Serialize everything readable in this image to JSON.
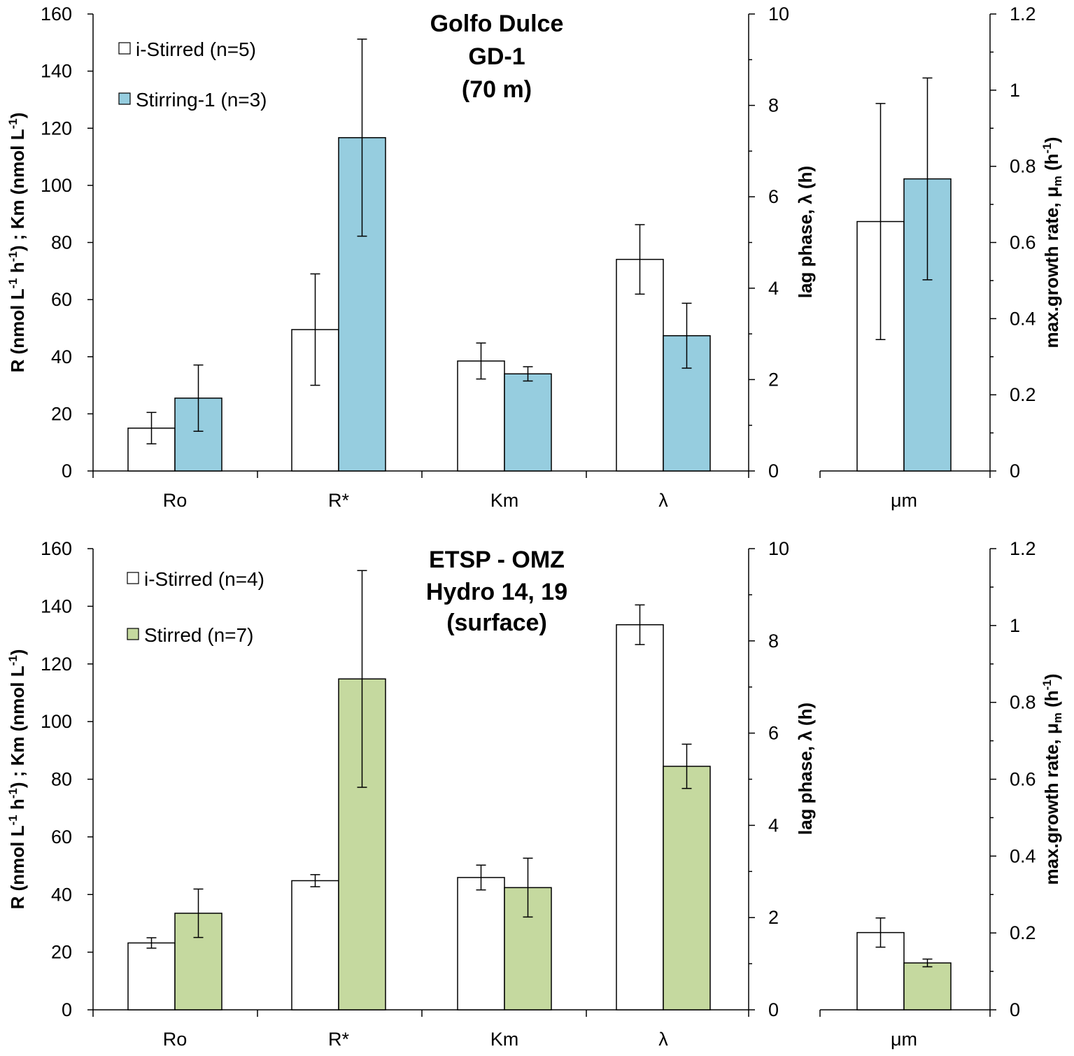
{
  "chart_data": [
    {
      "type": "bar",
      "title": [
        "Golfo Dulce",
        "GD-1",
        "(70 m)"
      ],
      "categories": [
        "Ro",
        "R*",
        "Km",
        "λ",
        "μm"
      ],
      "axes": {
        "left": {
          "label_parts": [
            "R (nmol L",
            "-1",
            " h",
            "-1",
            ") ; Km (nmol L",
            "-1",
            ")"
          ],
          "ylim": [
            0,
            160
          ],
          "ticks": [
            "0",
            "20",
            "40",
            "60",
            "80",
            "100",
            "120",
            "140",
            "160"
          ]
        },
        "lag": {
          "label": "lag phase, λ (h)",
          "ylim": [
            0,
            10
          ],
          "ticks": [
            "0",
            "2",
            "4",
            "6",
            "8",
            "10"
          ]
        },
        "mu": {
          "label_parts": [
            "max.growth rate, μ",
            "m",
            " (h",
            "-1",
            ")"
          ],
          "ylim": [
            0,
            1.2
          ],
          "ticks": [
            "0",
            "0.2",
            "0.4",
            "0.6",
            "0.8",
            "1",
            "1.2"
          ]
        }
      },
      "series": [
        {
          "name": "i-Stirred (n=5)",
          "color": "#ffffff",
          "values": [
            15,
            49.5,
            38.5,
            4.63,
            0.655
          ],
          "errors": [
            5.5,
            19.5,
            6.3,
            0.76,
            0.31
          ]
        },
        {
          "name": "Stirring-1 (n=3)",
          "color": "#96cddf",
          "values": [
            25.5,
            116.7,
            34,
            2.96,
            0.767
          ],
          "errors": [
            11.6,
            34.5,
            2.5,
            0.71,
            0.265
          ]
        }
      ],
      "category_axis": [
        "left",
        "left",
        "left",
        "lag",
        "mu"
      ]
    },
    {
      "type": "bar",
      "title": [
        "ETSP - OMZ",
        "Hydro 14, 19",
        "(surface)"
      ],
      "categories": [
        "Ro",
        "R*",
        "Km",
        "λ",
        "μm"
      ],
      "axes": {
        "left": {
          "label_parts": [
            "R (nmol L",
            "-1",
            " h",
            "-1",
            ") ; Km (nmol L",
            "-1",
            ")"
          ],
          "ylim": [
            0,
            160
          ],
          "ticks": [
            "0",
            "20",
            "40",
            "60",
            "80",
            "100",
            "120",
            "140",
            "160"
          ]
        },
        "lag": {
          "label": "lag phase, λ (h)",
          "ylim": [
            0,
            10
          ],
          "ticks": [
            "0",
            "2",
            "4",
            "6",
            "8",
            "10"
          ]
        },
        "mu": {
          "label_parts": [
            "max.growth rate, μ",
            "m",
            " (h",
            "-1",
            ")"
          ],
          "ylim": [
            0,
            1.2
          ],
          "ticks": [
            "0",
            "0.2",
            "0.4",
            "0.6",
            "0.8",
            "1",
            "1.2"
          ]
        }
      },
      "series": [
        {
          "name": "i-Stirred (n=4)",
          "color": "#ffffff",
          "values": [
            23.2,
            44.8,
            45.9,
            8.35,
            0.201
          ],
          "errors": [
            1.8,
            2.1,
            4.3,
            0.43,
            0.038
          ]
        },
        {
          "name": "Stirred (n=7)",
          "color": "#c5d99f",
          "values": [
            33.5,
            114.8,
            42.4,
            5.28,
            0.122
          ],
          "errors": [
            8.4,
            37.6,
            10.2,
            0.48,
            0.01
          ]
        }
      ],
      "category_axis": [
        "left",
        "left",
        "left",
        "lag",
        "mu"
      ]
    }
  ]
}
